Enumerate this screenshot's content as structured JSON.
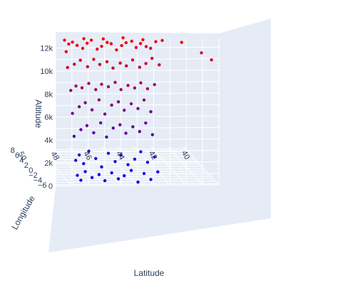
{
  "chart_data": {
    "type": "scatter",
    "title": "",
    "axes": {
      "x": {
        "label": "Latitude",
        "ticks": [
          "50",
          "48",
          "46",
          "44",
          "42",
          "40"
        ],
        "range": [
          50.5,
          39.5
        ]
      },
      "y": {
        "label": "Longitude",
        "ticks": [
          "8",
          "6",
          "4",
          "2",
          "0",
          "−2",
          "−4",
          "−6"
        ],
        "range": [
          -7,
          9
        ]
      },
      "z": {
        "label": "Altitude",
        "ticks": [
          "0",
          "2k",
          "4k",
          "6k",
          "8k",
          "10k",
          "12k"
        ],
        "range": [
          0,
          13000
        ]
      }
    },
    "color_scale": {
      "low": "#0000ff",
      "high": "#ff0000",
      "variable": "Altitude"
    },
    "scene_background": "#e5ecf6",
    "grid": true,
    "legend": "none",
    "point_color": "#1f1fd0",
    "points": [
      [
        49.3,
        -6.1,
        11600
      ],
      [
        49.1,
        -5.8,
        12200
      ],
      [
        48.9,
        -6.0,
        12400
      ],
      [
        48.6,
        -5.9,
        12100
      ],
      [
        48.3,
        -6.2,
        11900
      ],
      [
        48.0,
        -6.0,
        12300
      ],
      [
        47.7,
        -5.7,
        12500
      ],
      [
        47.4,
        -6.1,
        11800
      ],
      [
        47.1,
        -5.9,
        12000
      ],
      [
        46.8,
        -6.2,
        12400
      ],
      [
        46.5,
        -5.8,
        12200
      ],
      [
        46.2,
        -6.0,
        11700
      ],
      [
        45.9,
        -6.1,
        12100
      ],
      [
        45.6,
        -5.9,
        12300
      ],
      [
        45.3,
        -6.2,
        12500
      ],
      [
        45.0,
        -6.0,
        11900
      ],
      [
        44.7,
        -5.8,
        12200
      ],
      [
        44.4,
        -6.1,
        12000
      ],
      [
        44.1,
        -5.9,
        11800
      ],
      [
        43.8,
        -6.0,
        12400
      ],
      [
        49.2,
        -6.0,
        10200
      ],
      [
        48.8,
        -6.1,
        10500
      ],
      [
        48.4,
        -5.9,
        10800
      ],
      [
        48.0,
        -6.2,
        10300
      ],
      [
        47.6,
        -6.0,
        10900
      ],
      [
        47.2,
        -5.8,
        10400
      ],
      [
        46.8,
        -6.1,
        10700
      ],
      [
        46.4,
        -5.9,
        10100
      ],
      [
        46.0,
        -6.2,
        10600
      ],
      [
        45.6,
        -6.0,
        10300
      ],
      [
        45.2,
        -5.9,
        10800
      ],
      [
        44.8,
        -6.1,
        10200
      ],
      [
        44.4,
        -6.0,
        10500
      ],
      [
        44.0,
        -5.8,
        10900
      ],
      [
        43.6,
        -6.1,
        10400
      ],
      [
        49.0,
        -6.0,
        8200
      ],
      [
        48.7,
        -6.1,
        8600
      ],
      [
        48.3,
        -5.9,
        8400
      ],
      [
        47.9,
        -6.0,
        8800
      ],
      [
        47.5,
        -6.2,
        8300
      ],
      [
        47.1,
        -5.9,
        8700
      ],
      [
        46.7,
        -6.0,
        8500
      ],
      [
        46.3,
        -6.1,
        8900
      ],
      [
        45.9,
        -5.8,
        8200
      ],
      [
        45.5,
        -6.0,
        8600
      ],
      [
        45.1,
        -6.1,
        8400
      ],
      [
        44.7,
        -5.9,
        8800
      ],
      [
        44.3,
        -6.0,
        8300
      ],
      [
        43.9,
        -6.2,
        8700
      ],
      [
        48.9,
        -6.0,
        6200
      ],
      [
        48.5,
        -6.1,
        6800
      ],
      [
        48.1,
        -5.9,
        7100
      ],
      [
        47.7,
        -6.0,
        6500
      ],
      [
        47.3,
        -6.2,
        7400
      ],
      [
        46.9,
        -5.9,
        6100
      ],
      [
        46.5,
        -6.0,
        6900
      ],
      [
        46.1,
        -6.1,
        7200
      ],
      [
        45.7,
        -5.8,
        6400
      ],
      [
        45.3,
        -6.0,
        7000
      ],
      [
        44.9,
        -6.1,
        6600
      ],
      [
        44.5,
        -5.9,
        7300
      ],
      [
        44.1,
        -6.0,
        6300
      ],
      [
        48.8,
        -6.0,
        4200
      ],
      [
        48.4,
        -6.1,
        4800
      ],
      [
        48.0,
        -5.9,
        5100
      ],
      [
        47.6,
        -6.0,
        4500
      ],
      [
        47.2,
        -6.2,
        5400
      ],
      [
        46.8,
        -5.9,
        4100
      ],
      [
        46.4,
        -6.0,
        4900
      ],
      [
        46.0,
        -6.1,
        5200
      ],
      [
        45.6,
        -5.8,
        4400
      ],
      [
        45.2,
        -6.0,
        5000
      ],
      [
        44.8,
        -6.1,
        4600
      ],
      [
        44.4,
        -5.9,
        5300
      ],
      [
        44.0,
        -6.0,
        4300
      ],
      [
        48.7,
        -6.0,
        2100
      ],
      [
        48.5,
        -6.1,
        2600
      ],
      [
        48.2,
        -5.9,
        1800
      ],
      [
        47.9,
        -6.0,
        2900
      ],
      [
        47.5,
        -6.2,
        2300
      ],
      [
        47.1,
        -5.9,
        1500
      ],
      [
        46.7,
        -6.0,
        2700
      ],
      [
        46.3,
        -6.1,
        2000
      ],
      [
        45.9,
        -5.8,
        2500
      ],
      [
        45.5,
        -6.0,
        1700
      ],
      [
        45.1,
        -6.1,
        2200
      ],
      [
        44.7,
        -5.9,
        2800
      ],
      [
        44.3,
        -6.0,
        1900
      ],
      [
        43.9,
        -6.2,
        2400
      ],
      [
        48.6,
        -6.0,
        800
      ],
      [
        48.4,
        -6.1,
        400
      ],
      [
        48.1,
        -5.9,
        1100
      ],
      [
        47.7,
        -6.0,
        600
      ],
      [
        47.3,
        -6.2,
        900
      ],
      [
        46.9,
        -5.9,
        300
      ],
      [
        46.5,
        -6.0,
        1000
      ],
      [
        46.1,
        -6.1,
        500
      ],
      [
        45.7,
        -5.8,
        700
      ],
      [
        45.3,
        -6.0,
        1200
      ],
      [
        44.9,
        -6.1,
        200
      ],
      [
        44.5,
        -5.9,
        900
      ],
      [
        44.1,
        -6.0,
        400
      ],
      [
        43.7,
        -6.2,
        1100
      ],
      [
        49.4,
        -6.1,
        12600
      ],
      [
        48.2,
        -6.0,
        12700
      ],
      [
        47.0,
        -5.9,
        12650
      ],
      [
        45.8,
        -6.0,
        12750
      ],
      [
        44.6,
        -6.1,
        12600
      ],
      [
        43.4,
        -6.0,
        12500
      ],
      [
        42.2,
        -5.9,
        12300
      ],
      [
        41.0,
        -6.0,
        11400
      ],
      [
        40.4,
        -6.1,
        10800
      ]
    ]
  }
}
